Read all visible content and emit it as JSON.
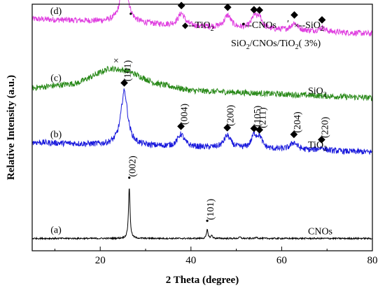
{
  "chart_data": {
    "type": "line",
    "xlabel": "2 Theta (degree)",
    "ylabel": "Relative Intensity (a.u.)",
    "xlim": [
      5,
      80
    ],
    "x_ticks": [
      20,
      40,
      60,
      80
    ],
    "grid": false,
    "legend": {
      "placement": "top-right",
      "items": [
        {
          "marker": "◆",
          "label": "--TiO",
          "sub": "2"
        },
        {
          "marker": "•",
          "label": "--CNOs",
          "sub": ""
        },
        {
          "marker": "×",
          "label": "--SiO",
          "sub": "2"
        }
      ],
      "note": "SiO",
      "note_sub": "2",
      "note_rest": "/CNOs/TiO",
      "note_sub2": "2",
      "note_end": "( 3%)",
      "prime": "′"
    },
    "series": [
      {
        "key": "d",
        "label": "(d)",
        "name": "SiO2/CNOs/TiO2( 3%)",
        "color": "#e040e0",
        "offset": 0.88,
        "noise": 0.012,
        "background": [
          [
            5,
            0.06
          ],
          [
            20,
            0.05
          ],
          [
            40,
            0.03
          ],
          [
            80,
            0.0
          ]
        ],
        "peaks": [
          {
            "x": 25.3,
            "h": 0.19,
            "w": 0.9,
            "marker": "◆"
          },
          {
            "x": 25.8,
            "h": 0.0,
            "w": 0.5,
            "marker": "•"
          },
          {
            "x": 37.9,
            "h": 0.05,
            "w": 0.9,
            "marker": "◆"
          },
          {
            "x": 48.1,
            "h": 0.05,
            "w": 0.9,
            "marker": "◆"
          },
          {
            "x": 53.9,
            "h": 0.045,
            "w": 0.7,
            "marker": "◆"
          },
          {
            "x": 55.1,
            "h": 0.045,
            "w": 0.7,
            "marker": "◆"
          },
          {
            "x": 62.8,
            "h": 0.03,
            "w": 0.9,
            "marker": "◆"
          },
          {
            "x": 68.9,
            "h": 0.015,
            "w": 0.9,
            "marker": "◆"
          }
        ]
      },
      {
        "key": "c",
        "label": "(c)",
        "name": "SiO",
        "sub": "2",
        "color": "#2a8a1a",
        "offset": 0.62,
        "noise": 0.012,
        "background": [
          [
            5,
            0.04
          ],
          [
            15,
            0.06
          ],
          [
            22,
            0.12
          ],
          [
            26,
            0.11
          ],
          [
            32,
            0.06
          ],
          [
            40,
            0.03
          ],
          [
            80,
            0.0
          ]
        ],
        "peaks": [
          {
            "x": 23.5,
            "h": 0.0,
            "w": 1,
            "marker": "×"
          }
        ]
      },
      {
        "key": "b",
        "label": "(b)",
        "name": "TiO",
        "sub": "2",
        "color": "#1a1adc",
        "offset": 0.4,
        "noise": 0.012,
        "background": [
          [
            5,
            0.04
          ],
          [
            20,
            0.03
          ],
          [
            40,
            0.02
          ],
          [
            80,
            0.0
          ]
        ],
        "peaks": [
          {
            "x": 25.3,
            "h": 0.22,
            "w": 0.9,
            "marker": "◆",
            "hkl": "(101)"
          },
          {
            "x": 37.8,
            "h": 0.05,
            "w": 0.9,
            "marker": "◆",
            "hkl": "(004)"
          },
          {
            "x": 48.0,
            "h": 0.05,
            "w": 0.9,
            "marker": "◆",
            "hkl": "(200)"
          },
          {
            "x": 53.9,
            "h": 0.05,
            "w": 0.7,
            "marker": "◆",
            "hkl": "(105)"
          },
          {
            "x": 55.1,
            "h": 0.045,
            "w": 0.7,
            "marker": "◆",
            "hkl": "(211)"
          },
          {
            "x": 62.7,
            "h": 0.03,
            "w": 0.9,
            "marker": "◆",
            "hkl": "(204)"
          },
          {
            "x": 68.8,
            "h": 0.012,
            "w": 0.9,
            "marker": "◆",
            "hkl": "(220)"
          }
        ]
      },
      {
        "key": "a",
        "label": "(a)",
        "name": "CNOs",
        "color": "#000000",
        "offset": 0.05,
        "noise": 0.003,
        "background": [
          [
            5,
            0.0
          ],
          [
            80,
            0.0
          ]
        ],
        "peaks": [
          {
            "x": 26.4,
            "h": 0.21,
            "w": 0.2,
            "marker": "•",
            "hkl": "(002)"
          },
          {
            "x": 43.6,
            "h": 0.035,
            "w": 0.2,
            "marker": "•",
            "hkl": "(101)"
          },
          {
            "x": 44.6,
            "h": 0.012,
            "w": 0.2
          },
          {
            "x": 50.8,
            "h": 0.006,
            "w": 0.2
          },
          {
            "x": 54.5,
            "h": 0.006,
            "w": 0.2
          }
        ]
      }
    ]
  }
}
